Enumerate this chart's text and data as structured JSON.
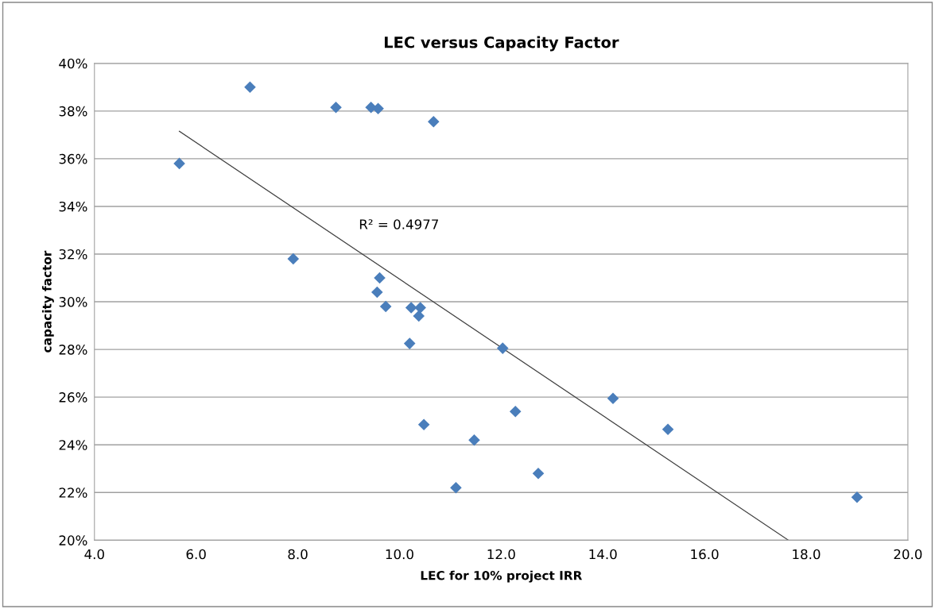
{
  "chart_data": {
    "type": "scatter",
    "title": "LEC versus Capacity Factor",
    "xlabel": "LEC for 10% project IRR",
    "ylabel": "capacity factor",
    "xlim": [
      4,
      20
    ],
    "xticks": [
      {
        "value": 4,
        "label": "4.0"
      },
      {
        "value": 6,
        "label": "6.0"
      },
      {
        "value": 8,
        "label": "8.0"
      },
      {
        "value": 10,
        "label": "10.0"
      },
      {
        "value": 12,
        "label": "12.0"
      },
      {
        "value": 14,
        "label": "14.0"
      },
      {
        "value": 16,
        "label": "16.0"
      },
      {
        "value": 18,
        "label": "18.0"
      },
      {
        "value": 20,
        "label": "20.0"
      }
    ],
    "ylim": [
      20,
      40
    ],
    "yticks": [
      {
        "value": 20,
        "label": "20%"
      },
      {
        "value": 22,
        "label": "22%"
      },
      {
        "value": 24,
        "label": "24%"
      },
      {
        "value": 26,
        "label": "26%"
      },
      {
        "value": 28,
        "label": "28%"
      },
      {
        "value": 30,
        "label": "30%"
      },
      {
        "value": 32,
        "label": "32%"
      },
      {
        "value": 34,
        "label": "34%"
      },
      {
        "value": 36,
        "label": "36%"
      },
      {
        "value": 38,
        "label": "38%"
      },
      {
        "value": 40,
        "label": "40%"
      }
    ],
    "grid": "y",
    "series": [
      {
        "marker": "diamond",
        "color": "#4a7ebb",
        "x": [
          5.67,
          7.06,
          8.75,
          9.44,
          9.58,
          10.67,
          7.91,
          9.61,
          9.56,
          9.73,
          10.23,
          10.41,
          10.38,
          10.2,
          12.03,
          14.2,
          12.28,
          15.28,
          10.48,
          11.47,
          11.11,
          12.73,
          19.0
        ],
        "values": [
          35.8,
          39.0,
          38.15,
          38.15,
          38.1,
          37.55,
          31.8,
          31.0,
          30.4,
          29.8,
          29.75,
          29.75,
          29.4,
          28.25,
          28.05,
          25.95,
          25.4,
          24.65,
          24.85,
          24.2,
          22.2,
          22.8,
          21.8
        ]
      },
      {
        "type": "line",
        "marker": "none",
        "color": "#404040",
        "x": [
          5.67,
          17.65
        ],
        "values": [
          37.15,
          20.0
        ]
      }
    ],
    "annotations": [
      "R² = 0.4977"
    ]
  }
}
